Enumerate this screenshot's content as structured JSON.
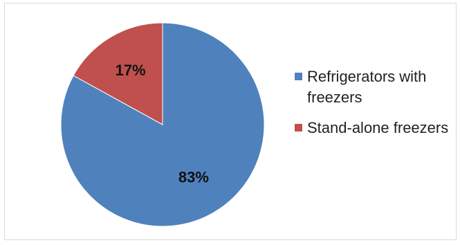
{
  "chart_data": {
    "type": "pie",
    "categories": [
      "Refrigerators with freezers",
      "Stand-alone freezers"
    ],
    "values": [
      83,
      17
    ],
    "data_labels": [
      "83%",
      "17%"
    ],
    "colors": [
      "#4f81bd",
      "#c0504d"
    ],
    "start_angle_deg": 0,
    "direction": "clockwise",
    "legend_position": "right",
    "title": ""
  }
}
